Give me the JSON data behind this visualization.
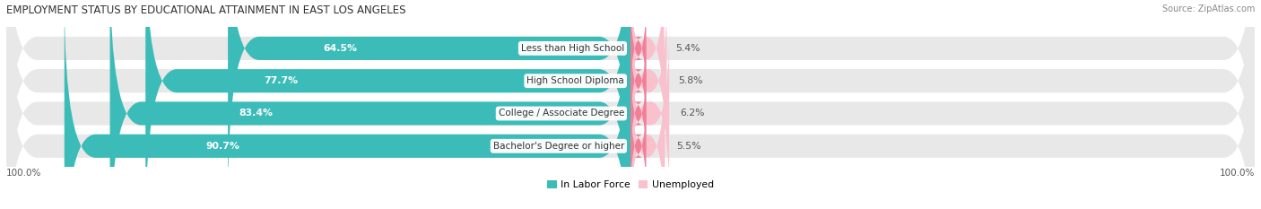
{
  "title": "EMPLOYMENT STATUS BY EDUCATIONAL ATTAINMENT IN EAST LOS ANGELES",
  "source": "Source: ZipAtlas.com",
  "categories": [
    "Less than High School",
    "High School Diploma",
    "College / Associate Degree",
    "Bachelor's Degree or higher"
  ],
  "in_labor_force": [
    64.5,
    77.7,
    83.4,
    90.7
  ],
  "unemployed": [
    5.4,
    5.8,
    6.2,
    5.5
  ],
  "color_labor": "#3BBCB8",
  "color_unemployed": "#F08098",
  "color_unemployed_light": "#F9C0CD",
  "color_bg_bar": "#E8E8E8",
  "axis_label_left": "100.0%",
  "axis_label_right": "100.0%",
  "legend_labor": "In Labor Force",
  "legend_unemployed": "Unemployed",
  "bar_height": 0.72,
  "title_fontsize": 8.5,
  "label_fontsize": 7.8,
  "tick_fontsize": 7.5,
  "source_fontsize": 7.0
}
